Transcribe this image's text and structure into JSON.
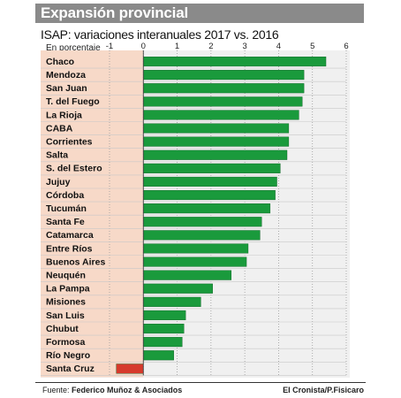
{
  "header": {
    "title": "Expansión provincial",
    "subtitle": "ISAP: variaciones interanuales 2017 vs. 2016",
    "unit": "En porcentaje"
  },
  "footer": {
    "source_label": "Fuente:",
    "source": "Federico Muñoz & Asociados",
    "credit": "El Cronista/P.Fisicaro"
  },
  "colors": {
    "positive": "#1a9a3c",
    "negative": "#d63a2c",
    "label_band": "#f7d9c8",
    "panel": "#f0f0f0"
  },
  "chart_data": {
    "type": "bar",
    "orientation": "horizontal",
    "title": "ISAP: variaciones interanuales 2017 vs. 2016",
    "xlabel": "En porcentaje",
    "ylabel": "",
    "xlim": [
      -1,
      6
    ],
    "xticks": [
      "-1",
      "0",
      "1",
      "2",
      "3",
      "4",
      "5",
      "6"
    ],
    "grid": true,
    "categories": [
      "Chaco",
      "Mendoza",
      "San Juan",
      "T. del Fuego",
      "La Rioja",
      "CABA",
      "Corrientes",
      "Salta",
      "S. del Estero",
      "Jujuy",
      "Córdoba",
      "Tucumán",
      "Santa Fe",
      "Catamarca",
      "Entre Ríos",
      "Buenos Aires",
      "Neuquén",
      "La Pampa",
      "Misiones",
      "San Luis",
      "Chubut",
      "Formosa",
      "Río Negro",
      "Santa Cruz"
    ],
    "values": [
      5.4,
      4.75,
      4.75,
      4.7,
      4.6,
      4.3,
      4.3,
      4.25,
      4.05,
      3.95,
      3.9,
      3.75,
      3.5,
      3.45,
      3.1,
      3.05,
      2.6,
      2.05,
      1.7,
      1.25,
      1.2,
      1.15,
      0.9,
      -0.8
    ]
  }
}
